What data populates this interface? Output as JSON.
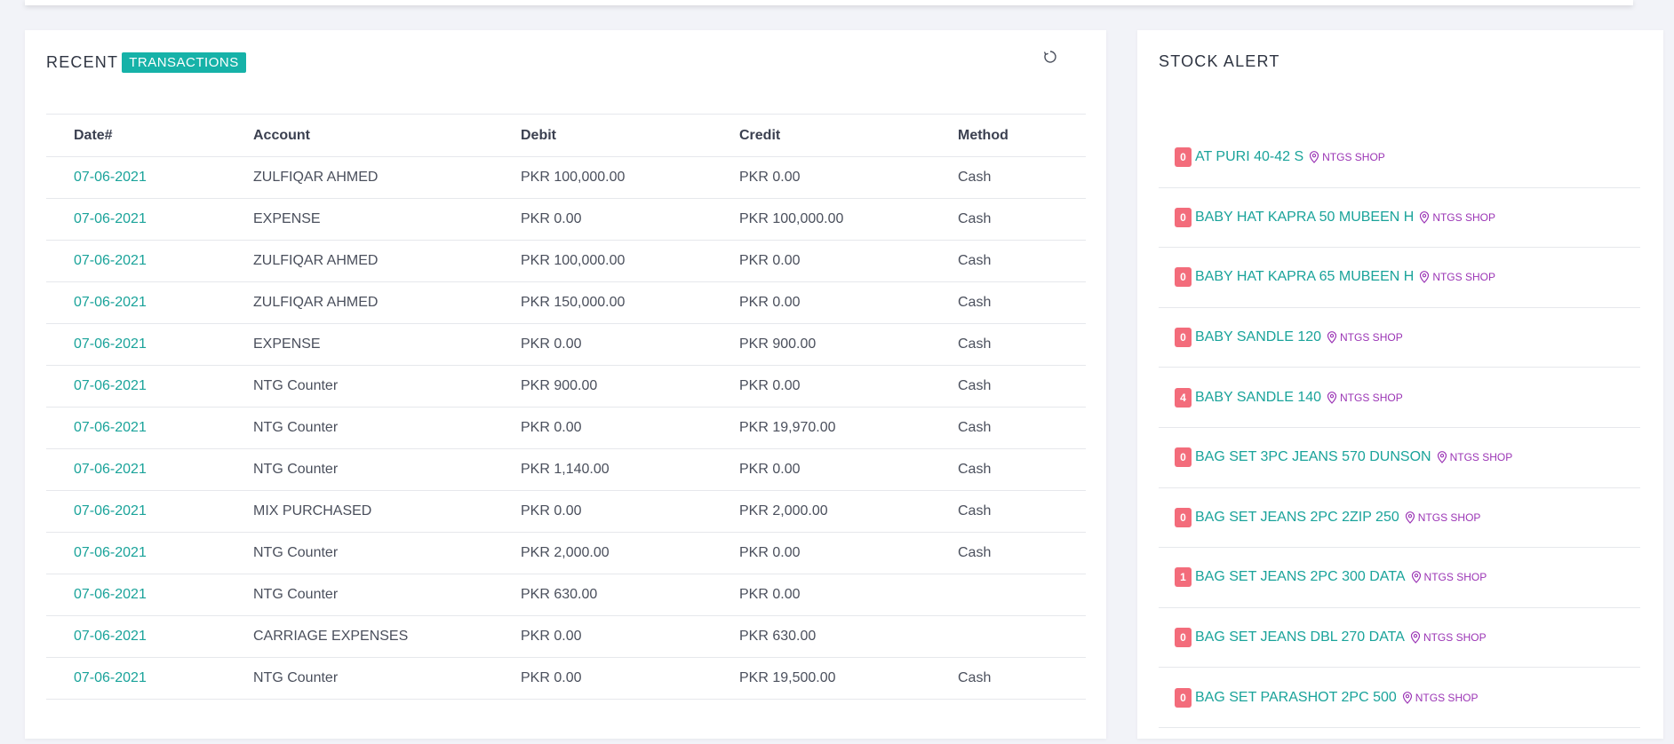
{
  "transactions": {
    "title_prefix": "RECENT",
    "title_badge": "TRANSACTIONS",
    "refresh_icon": "refresh-icon",
    "columns": [
      "Date#",
      "Account",
      "Debit",
      "Credit",
      "Method"
    ],
    "rows": [
      {
        "date": "07-06-2021",
        "account": "ZULFIQAR AHMED",
        "debit": "PKR 100,000.00",
        "credit": "PKR 0.00",
        "method": "Cash"
      },
      {
        "date": "07-06-2021",
        "account": "EXPENSE",
        "debit": "PKR 0.00",
        "credit": "PKR 100,000.00",
        "method": "Cash"
      },
      {
        "date": "07-06-2021",
        "account": "ZULFIQAR AHMED",
        "debit": "PKR 100,000.00",
        "credit": "PKR 0.00",
        "method": "Cash"
      },
      {
        "date": "07-06-2021",
        "account": "ZULFIQAR AHMED",
        "debit": "PKR 150,000.00",
        "credit": "PKR 0.00",
        "method": "Cash"
      },
      {
        "date": "07-06-2021",
        "account": "EXPENSE",
        "debit": "PKR 0.00",
        "credit": "PKR 900.00",
        "method": "Cash"
      },
      {
        "date": "07-06-2021",
        "account": "NTG Counter",
        "debit": "PKR 900.00",
        "credit": "PKR 0.00",
        "method": "Cash"
      },
      {
        "date": "07-06-2021",
        "account": "NTG Counter",
        "debit": "PKR 0.00",
        "credit": "PKR 19,970.00",
        "method": "Cash"
      },
      {
        "date": "07-06-2021",
        "account": "NTG Counter",
        "debit": "PKR 1,140.00",
        "credit": "PKR 0.00",
        "method": "Cash"
      },
      {
        "date": "07-06-2021",
        "account": "MIX PURCHASED",
        "debit": "PKR 0.00",
        "credit": "PKR 2,000.00",
        "method": "Cash"
      },
      {
        "date": "07-06-2021",
        "account": "NTG Counter",
        "debit": "PKR 2,000.00",
        "credit": "PKR 0.00",
        "method": "Cash"
      },
      {
        "date": "07-06-2021",
        "account": "NTG Counter",
        "debit": "PKR 630.00",
        "credit": "PKR 0.00",
        "method": ""
      },
      {
        "date": "07-06-2021",
        "account": "CARRIAGE EXPENSES",
        "debit": "PKR 0.00",
        "credit": "PKR 630.00",
        "method": ""
      },
      {
        "date": "07-06-2021",
        "account": "NTG Counter",
        "debit": "PKR 0.00",
        "credit": "PKR 19,500.00",
        "method": "Cash"
      }
    ]
  },
  "stock_alert": {
    "title": "STOCK ALERT",
    "location_icon": "map-pin-icon",
    "items": [
      {
        "qty": "0",
        "name": "AT PURI 40-42 S",
        "shop": "NTGS SHOP"
      },
      {
        "qty": "0",
        "name": "BABY HAT KAPRA 50 MUBEEN H",
        "shop": "NTGS SHOP"
      },
      {
        "qty": "0",
        "name": "BABY HAT KAPRA 65 MUBEEN H",
        "shop": "NTGS SHOP"
      },
      {
        "qty": "0",
        "name": "BABY SANDLE 120",
        "shop": "NTGS SHOP"
      },
      {
        "qty": "4",
        "name": "BABY SANDLE 140",
        "shop": "NTGS SHOP"
      },
      {
        "qty": "0",
        "name": "BAG SET 3PC JEANS 570 DUNSON",
        "shop": "NTGS SHOP"
      },
      {
        "qty": "0",
        "name": "BAG SET JEANS 2PC 2ZIP 250",
        "shop": "NTGS SHOP"
      },
      {
        "qty": "1",
        "name": "BAG SET JEANS 2PC 300 DATA",
        "shop": "NTGS SHOP"
      },
      {
        "qty": "0",
        "name": "BAG SET JEANS DBL 270 DATA",
        "shop": "NTGS SHOP"
      },
      {
        "qty": "0",
        "name": "BAG SET PARASHOT 2PC 500",
        "shop": "NTGS SHOP"
      }
    ]
  },
  "colors": {
    "accent_teal": "#1aa39a",
    "badge_teal": "#16b2a8",
    "qty_badge_red": "#f36c7b",
    "shop_purple": "#9b35b5",
    "background": "#f2f3f8"
  }
}
